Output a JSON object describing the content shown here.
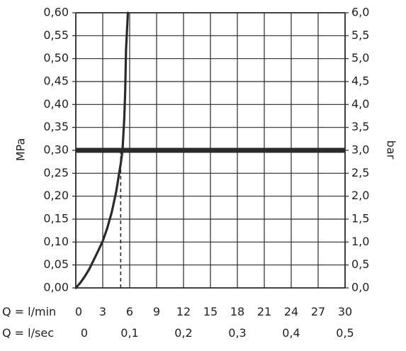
{
  "chart_data": {
    "type": "line",
    "title": "",
    "y_left": {
      "label": "MPa",
      "range": [
        0,
        0.6
      ],
      "ticks": [
        "0,00",
        "0,05",
        "0,10",
        "0,15",
        "0,20",
        "0,25",
        "0,30",
        "0,35",
        "0,40",
        "0,45",
        "0,50",
        "0,55",
        "0,60"
      ]
    },
    "y_right": {
      "label": "bar",
      "range": [
        0,
        6
      ],
      "ticks": [
        "0,0",
        "0,5",
        "1,0",
        "1,5",
        "2,0",
        "2,5",
        "3,0",
        "3,5",
        "4,0",
        "4,5",
        "5,0",
        "5,5",
        "6,0"
      ]
    },
    "x_lmin": {
      "label": "Q = l/min",
      "range": [
        0,
        30
      ],
      "ticks": [
        "0",
        "3",
        "6",
        "9",
        "12",
        "15",
        "18",
        "21",
        "24",
        "27",
        "30"
      ]
    },
    "x_lsec": {
      "label": "Q = l/sec",
      "tick_values": [
        0,
        6,
        12,
        18,
        24,
        30
      ],
      "ticks": [
        "0",
        "0,1",
        "0,2",
        "0,3",
        "0,4",
        "0,5"
      ]
    },
    "grid": true,
    "series": [
      {
        "x": [
          0,
          0.5,
          1,
          1.5,
          2,
          2.5,
          3,
          3.5,
          4,
          4.5,
          5,
          5.2,
          5.4,
          5.5,
          5.6,
          5.8
        ],
        "y": [
          0,
          0.011,
          0.025,
          0.041,
          0.061,
          0.081,
          0.102,
          0.13,
          0.165,
          0.21,
          0.27,
          0.3,
          0.37,
          0.43,
          0.52,
          0.6
        ]
      }
    ],
    "reference_line": {
      "y": 0.3
    },
    "marker_line": {
      "x": 5.0,
      "y_from": 0,
      "y_to": 0.3
    }
  }
}
